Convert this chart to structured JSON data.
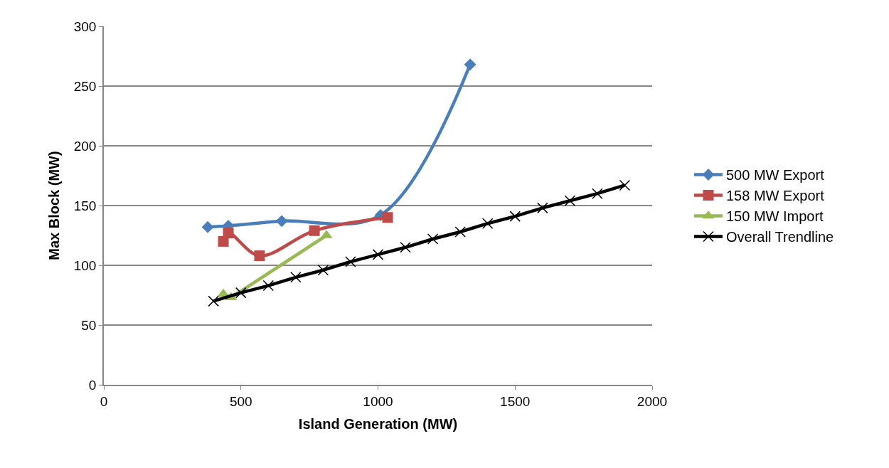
{
  "chart_data": {
    "type": "line",
    "xlabel": "Island Generation (MW)",
    "ylabel": "Max Block (MW)",
    "xlim": [
      0,
      2000
    ],
    "xticks": [
      0,
      500,
      1000,
      1500,
      2000
    ],
    "ylim": [
      0,
      300
    ],
    "yticks": [
      0,
      50,
      100,
      150,
      200,
      250,
      300
    ],
    "grid": "y",
    "legend": "right",
    "line_style": "solid",
    "series": [
      {
        "name": "500 MW Export",
        "color": "#4a7ebb",
        "marker": "diamond",
        "x": [
          379,
          454,
          649,
          1009,
          1336
        ],
        "values": [
          132,
          133,
          137,
          142,
          268
        ]
      },
      {
        "name": "158 MW Export",
        "color": "#be4b48",
        "marker": "square",
        "x": [
          436,
          454,
          568,
          768,
          1035
        ],
        "values": [
          120,
          127,
          108,
          129,
          140
        ]
      },
      {
        "name": "150 MW Import",
        "color": "#98b954",
        "marker": "triangle",
        "x": [
          436,
          464,
          812
        ],
        "values": [
          76,
          73,
          125
        ]
      },
      {
        "name": "Overall Trendline",
        "color": "#000000",
        "marker": "cross",
        "x": [
          400,
          500,
          600,
          700,
          800,
          900,
          1000,
          1100,
          1200,
          1300,
          1400,
          1500,
          1600,
          1700,
          1800,
          1900
        ],
        "values": [
          70,
          77,
          83,
          90,
          96,
          103,
          109,
          115,
          122,
          128,
          135,
          141,
          148,
          154,
          160,
          167
        ]
      }
    ]
  }
}
